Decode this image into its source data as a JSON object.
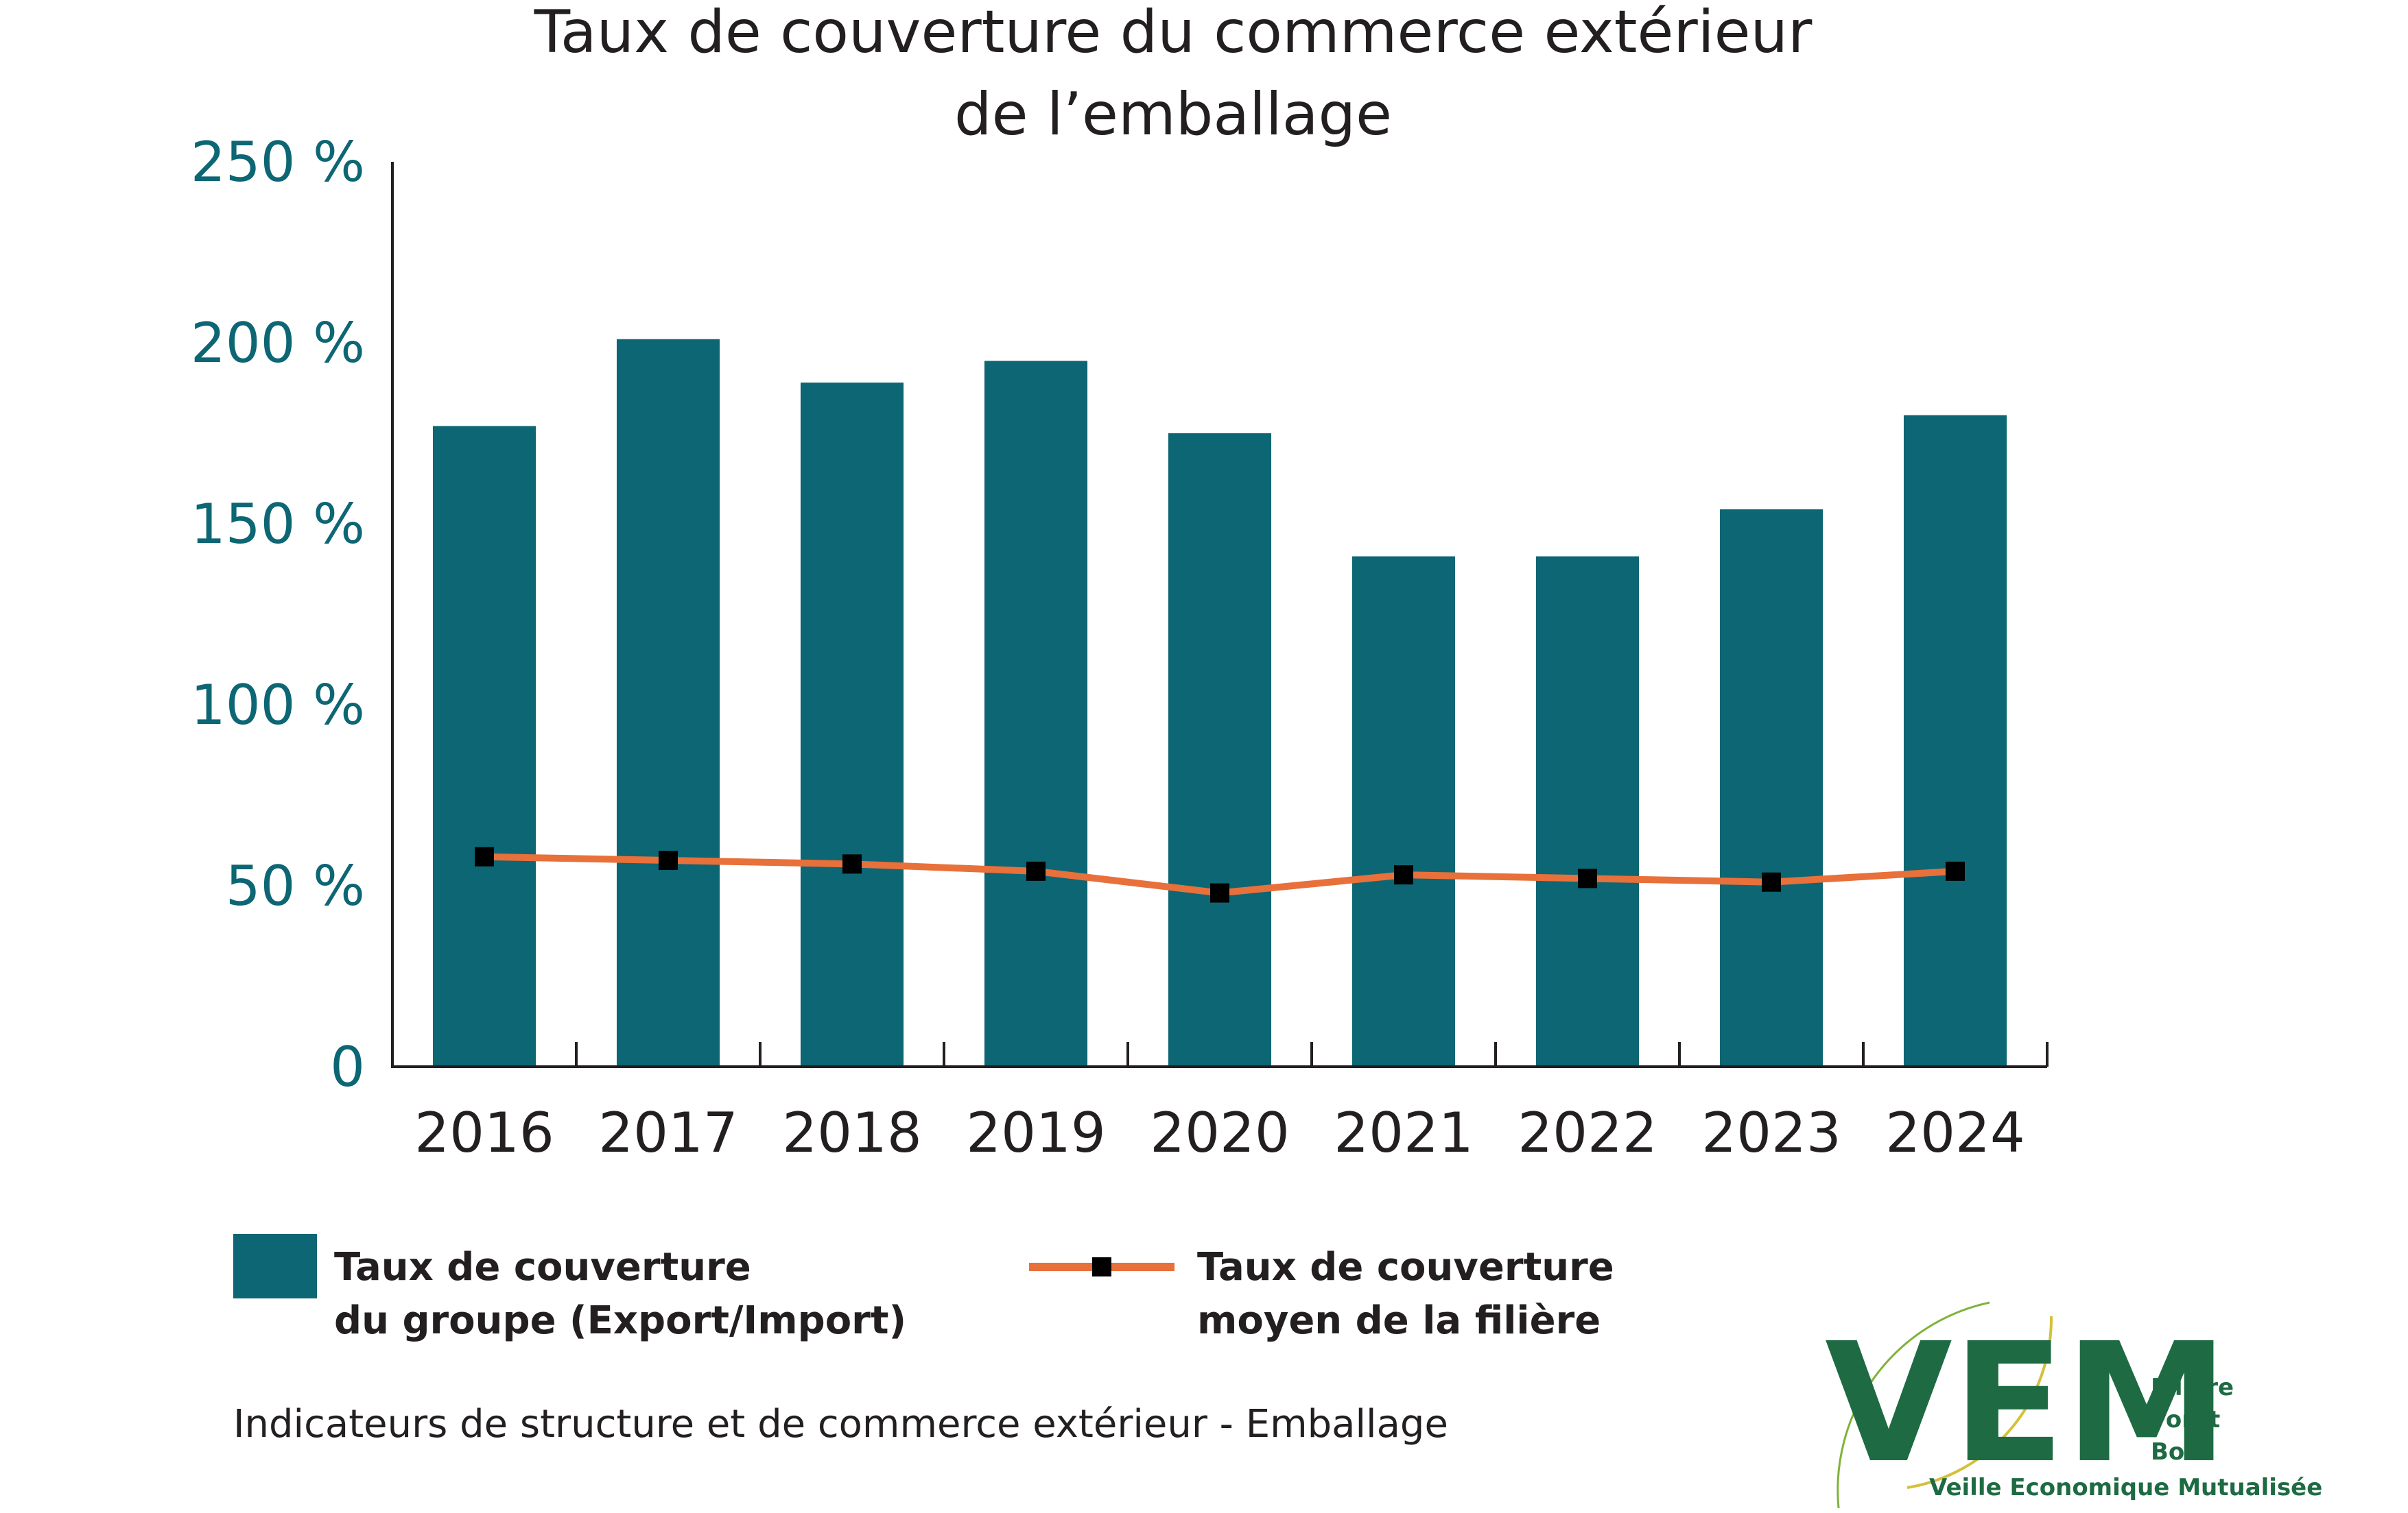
{
  "chart_data": {
    "type": "bar",
    "title": "Taux de couverture du commerce extérieur de l’emballage",
    "title_lines": [
      "Taux de couverture du commerce extérieur",
      "de l’emballage"
    ],
    "categories": [
      "2016",
      "2017",
      "2018",
      "2019",
      "2020",
      "2021",
      "2022",
      "2023",
      "2024"
    ],
    "series": [
      {
        "name": "Taux de couverture du groupe (Export/Import)",
        "legend_lines": [
          "Taux de couverture",
          "du groupe (Export/Import)"
        ],
        "type": "bar",
        "color": "#0d6674",
        "values": [
          177,
          201,
          189,
          195,
          175,
          141,
          141,
          154,
          180
        ]
      },
      {
        "name": "Taux de couverture moyen de la filière",
        "legend_lines": [
          "Taux de couverture",
          "moyen de la filière"
        ],
        "type": "line",
        "color": "#e8703a",
        "marker_color": "#000000",
        "values": [
          58,
          57,
          56,
          54,
          48,
          53,
          52,
          51,
          54
        ]
      }
    ],
    "yticks": [
      {
        "value": 0,
        "label": "0"
      },
      {
        "value": 50,
        "label": "50 %"
      },
      {
        "value": 100,
        "label": "100 %"
      },
      {
        "value": 150,
        "label": "150 %"
      },
      {
        "value": 200,
        "label": "200 %"
      },
      {
        "value": 250,
        "label": "250 %"
      }
    ],
    "ylim": [
      0,
      250
    ],
    "grid": false,
    "legend_position": "bottom"
  },
  "caption": "Indicateurs de structure et de commerce extérieur - Emballage",
  "logo": {
    "mark": "VEM",
    "lines": [
      "Filière",
      "Forêt",
      "Bois"
    ],
    "tagline": "Veille Economique Mutualisée",
    "color": "#1e6b43",
    "accent_color": "#d4c03a"
  }
}
